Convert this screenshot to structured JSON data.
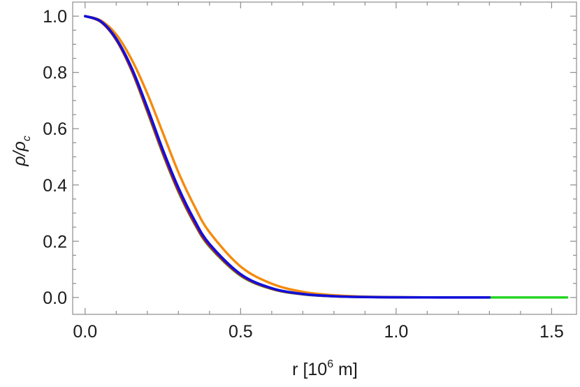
{
  "chart_data": {
    "type": "line",
    "xlabel_main": "r [10",
    "xlabel_sup": "6",
    "xlabel_tail": " m]",
    "ylabel_main": "ρ/ρ",
    "ylabel_sub": "c",
    "xlim": [
      -0.04,
      1.58
    ],
    "ylim": [
      -0.06,
      1.05
    ],
    "xticks": [
      0.0,
      0.5,
      1.0,
      1.5
    ],
    "xtick_labels": [
      "0.0",
      "0.5",
      "1.0",
      "1.5"
    ],
    "yticks": [
      0.0,
      0.2,
      0.4,
      0.6,
      0.8,
      1.0
    ],
    "ytick_labels": [
      "0.0",
      "0.2",
      "0.4",
      "0.6",
      "0.8",
      "1.0"
    ],
    "grid": false,
    "series": [
      {
        "color": "#1fd41f",
        "x": [
          0.0,
          0.05,
          0.1,
          0.15,
          0.2,
          0.25,
          0.3,
          0.35,
          0.4,
          0.5,
          0.6,
          0.7,
          0.8,
          0.9,
          1.0,
          1.1,
          1.2,
          1.3,
          1.4,
          1.5,
          1.55
        ],
        "y": [
          1.0,
          0.98,
          0.915,
          0.805,
          0.66,
          0.51,
          0.375,
          0.265,
          0.18,
          0.077,
          0.03,
          0.011,
          0.004,
          0.0015,
          0.0005,
          0.0002,
          0.0,
          0.0,
          0.0,
          0.0,
          0.0
        ]
      },
      {
        "color": "#c8102e",
        "x": [
          0.0,
          0.05,
          0.1,
          0.15,
          0.2,
          0.25,
          0.3,
          0.35,
          0.4,
          0.5,
          0.6,
          0.7,
          0.8,
          0.9,
          1.0,
          1.1,
          1.2,
          1.3
        ],
        "y": [
          1.0,
          0.98,
          0.916,
          0.807,
          0.664,
          0.514,
          0.379,
          0.268,
          0.183,
          0.079,
          0.031,
          0.0115,
          0.004,
          0.0015,
          0.0005,
          0.0002,
          0.0,
          0.0
        ]
      },
      {
        "color": "#f58a0b",
        "x": [
          0.0,
          0.05,
          0.1,
          0.15,
          0.2,
          0.25,
          0.3,
          0.35,
          0.4,
          0.5,
          0.6,
          0.7,
          0.8,
          0.9,
          1.0,
          1.1,
          1.2,
          1.3
        ],
        "y": [
          1.0,
          0.985,
          0.935,
          0.845,
          0.725,
          0.585,
          0.445,
          0.328,
          0.232,
          0.11,
          0.049,
          0.02,
          0.008,
          0.003,
          0.0012,
          0.0005,
          0.0002,
          0.0
        ]
      },
      {
        "color": "#1010d8",
        "x": [
          0.0,
          0.05,
          0.1,
          0.15,
          0.2,
          0.25,
          0.3,
          0.35,
          0.4,
          0.5,
          0.6,
          0.7,
          0.8,
          0.9,
          1.0,
          1.1,
          1.2,
          1.3
        ],
        "y": [
          1.0,
          0.982,
          0.92,
          0.815,
          0.675,
          0.525,
          0.39,
          0.278,
          0.19,
          0.083,
          0.033,
          0.0125,
          0.0045,
          0.0016,
          0.0006,
          0.0002,
          0.0,
          0.0
        ]
      }
    ]
  }
}
